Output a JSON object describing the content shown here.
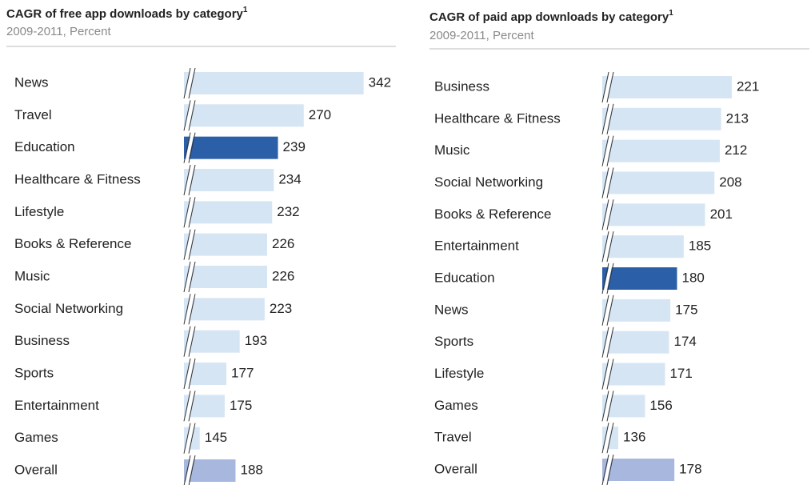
{
  "chart_data": [
    {
      "type": "bar",
      "orientation": "horizontal",
      "title": "CAGR of free app downloads by category",
      "title_footnote": "1",
      "subtitle": "2009-2011, Percent",
      "categories": [
        "News",
        "Travel",
        "Education",
        "Healthcare & Fitness",
        "Lifestyle",
        "Books & Reference",
        "Music",
        "Social Networking",
        "Business",
        "Sports",
        "Entertainment",
        "Games",
        "Overall"
      ],
      "values": [
        342,
        270,
        239,
        234,
        232,
        226,
        226,
        223,
        193,
        177,
        175,
        145,
        188
      ],
      "colors": [
        "#d6e5f4",
        "#d6e5f4",
        "#2b60a9",
        "#d6e5f4",
        "#d6e5f4",
        "#d6e5f4",
        "#d6e5f4",
        "#d6e5f4",
        "#d6e5f4",
        "#d6e5f4",
        "#d6e5f4",
        "#d6e5f4",
        "#a8b7dd"
      ],
      "xlim": [
        126,
        400
      ],
      "axis_break": true
    },
    {
      "type": "bar",
      "orientation": "horizontal",
      "title": "CAGR of paid app downloads by category",
      "title_footnote": "1",
      "subtitle": "2009-2011, Percent",
      "categories": [
        "Business",
        "Healthcare & Fitness",
        "Music",
        "Social Networking",
        "Books & Reference",
        "Entertainment",
        "Education",
        "News",
        "Sports",
        "Lifestyle",
        "Games",
        "Travel",
        "Overall"
      ],
      "values": [
        221,
        213,
        212,
        208,
        201,
        185,
        180,
        175,
        174,
        171,
        156,
        136,
        178
      ],
      "colors": [
        "#d6e5f4",
        "#d6e5f4",
        "#d6e5f4",
        "#d6e5f4",
        "#d6e5f4",
        "#d6e5f4",
        "#2b60a9",
        "#d6e5f4",
        "#d6e5f4",
        "#d6e5f4",
        "#d6e5f4",
        "#d6e5f4",
        "#a8b7dd"
      ],
      "xlim": [
        124,
        280
      ],
      "axis_break": true
    }
  ]
}
